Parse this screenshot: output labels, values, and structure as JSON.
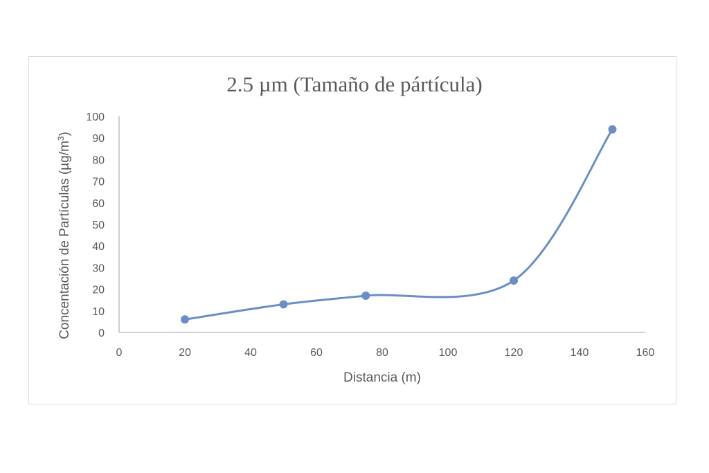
{
  "chart_data": {
    "type": "line",
    "title": "2.5 µm (Tamaño  de pártícula)",
    "xlabel": "Distancia (m)",
    "ylabel": "Concentación de Partículas (µg/m3)",
    "ylabel_parts": {
      "main": "Concentación de Partículas (µg/m",
      "sup": "3",
      "close": ")"
    },
    "xlim": [
      0,
      160
    ],
    "ylim": [
      0,
      100
    ],
    "x_ticks": [
      0,
      20,
      40,
      60,
      80,
      100,
      120,
      140,
      160
    ],
    "y_ticks": [
      0,
      10,
      20,
      30,
      40,
      50,
      60,
      70,
      80,
      90,
      100
    ],
    "series": [
      {
        "x": [
          20,
          50,
          75,
          120,
          150
        ],
        "y": [
          6,
          13,
          17,
          24,
          94
        ]
      }
    ],
    "smooth": true,
    "grid": false,
    "legend": "none",
    "colors": {
      "line": "#6a8fc6",
      "marker": "#6a8fc6",
      "axis": "#bfbfbf",
      "text": "#595959"
    }
  }
}
